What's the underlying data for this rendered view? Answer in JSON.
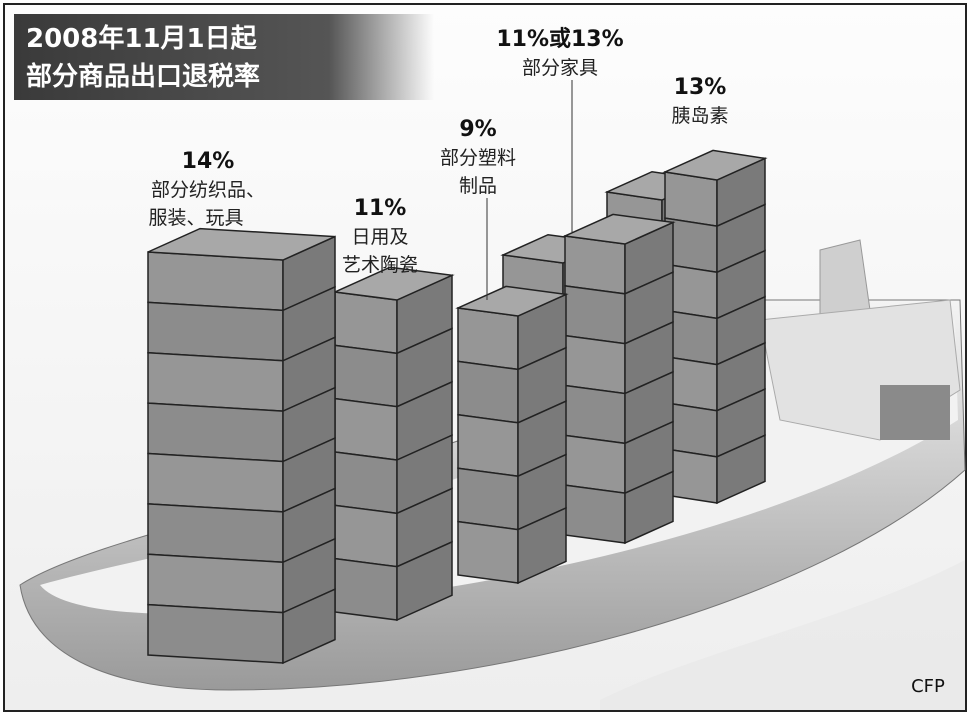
{
  "header": {
    "title_lines": [
      "2008年11月1日起",
      "部分商品出口退税率"
    ]
  },
  "items": [
    {
      "rate": "14%",
      "label_lines": [
        "部分纺织品、",
        "服装、玩具"
      ]
    },
    {
      "rate": "11%",
      "label_lines": [
        "日用及",
        "艺术陶瓷"
      ]
    },
    {
      "rate": "9%",
      "label_lines": [
        "部分塑料",
        "制品"
      ]
    },
    {
      "rate": "11%或13%",
      "label_lines": [
        "部分家具"
      ]
    },
    {
      "rate": "13%",
      "label_lines": [
        "胰岛素"
      ]
    }
  ],
  "credit": "CFP"
}
